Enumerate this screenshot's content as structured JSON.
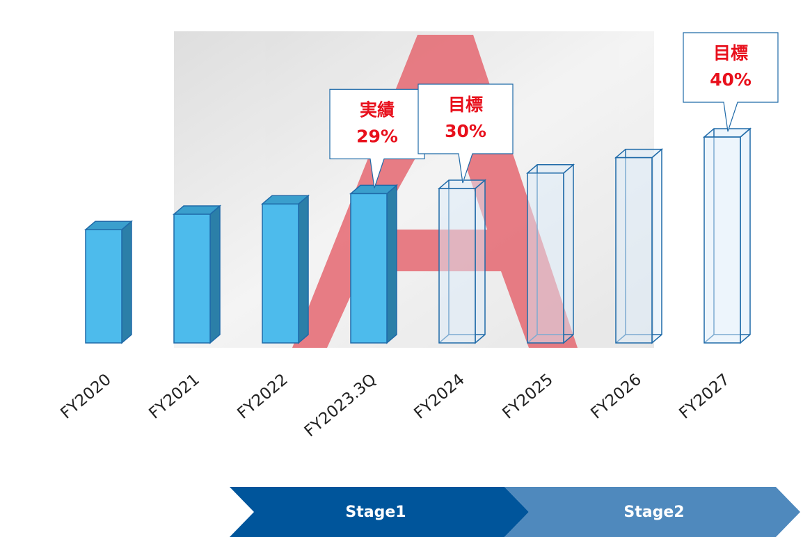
{
  "chart_data": {
    "type": "bar3d",
    "categories": [
      "FY2020",
      "FY2021",
      "FY2022",
      "FY2023.3Q",
      "FY2024",
      "FY2025",
      "FY2026",
      "FY2027"
    ],
    "values": [
      22,
      25,
      27,
      29,
      30,
      33,
      36,
      40
    ],
    "value_labels": [
      null,
      null,
      null,
      "29%",
      "30%",
      null,
      null,
      "40%"
    ],
    "label_titles": [
      null,
      null,
      null,
      "実績",
      "目標",
      null,
      null,
      "目標"
    ],
    "bar_styles": [
      "solid",
      "solid",
      "solid",
      "solid",
      "outline",
      "outline",
      "outline",
      "outline"
    ],
    "color": "#4dbbec",
    "edge_color": "#1f6aa8",
    "stages": [
      "Stage1",
      "Stage2"
    ]
  }
}
